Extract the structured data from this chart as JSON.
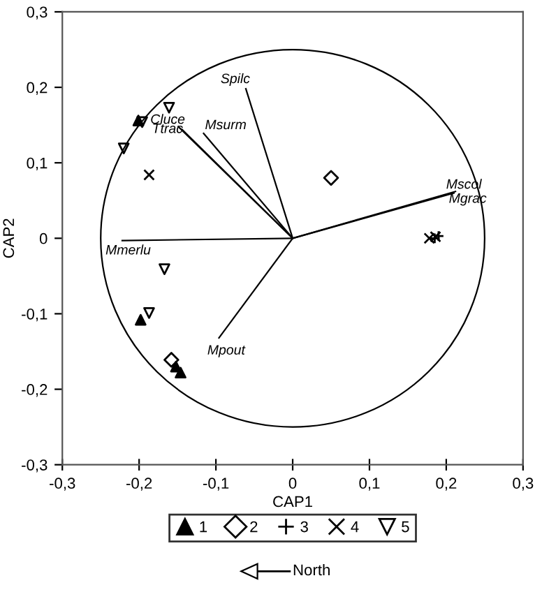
{
  "chart_data": {
    "type": "scatter",
    "xlabel": "CAP1",
    "ylabel": "CAP2",
    "xlim": [
      -0.3,
      0.3
    ],
    "ylim": [
      -0.3,
      0.3
    ],
    "xticks": [
      {
        "value": -0.3,
        "label": "-0,3"
      },
      {
        "value": -0.2,
        "label": "-0,2"
      },
      {
        "value": -0.1,
        "label": "-0,1"
      },
      0,
      {
        "value": 0.1,
        "label": "0,1"
      },
      {
        "value": 0.2,
        "label": "0,2"
      },
      {
        "value": 0.3,
        "label": "0,3"
      }
    ],
    "yticks": [
      {
        "value": -0.3,
        "label": "-0,3"
      },
      {
        "value": -0.2,
        "label": "-0,2"
      },
      {
        "value": -0.1,
        "label": "-0,1"
      },
      0,
      {
        "value": 0.1,
        "label": "0,1"
      },
      {
        "value": 0.2,
        "label": "0,2"
      },
      {
        "value": 0.3,
        "label": "0,3"
      }
    ],
    "grid": false,
    "legend": "bottom",
    "annotations": [
      "North"
    ],
    "series": [
      {
        "name": "1",
        "marker": "triangle",
        "color": "#000000",
        "x": [
          -0.201,
          -0.198,
          -0.152,
          -0.146
        ],
        "values": [
          0.156,
          -0.108,
          -0.17,
          -0.178
        ]
      },
      {
        "name": "2",
        "marker": "diamond",
        "color": "#000000",
        "x": [
          0.05,
          -0.158
        ],
        "values": [
          0.08,
          -0.161
        ]
      },
      {
        "name": "3",
        "marker": "plus",
        "color": "#000000",
        "x": [
          0.185,
          0.19
        ],
        "values": [
          0.0,
          0.003
        ]
      },
      {
        "name": "4",
        "marker": "cross",
        "color": "#000000",
        "x": [
          -0.187,
          0.178,
          0.186
        ],
        "values": [
          0.084,
          0.0,
          0.002
        ]
      },
      {
        "name": "5",
        "marker": "triangle-down",
        "color": "#000000",
        "x": [
          -0.161,
          -0.196,
          -0.22,
          -0.167,
          -0.187
        ],
        "values": [
          0.173,
          0.154,
          0.119,
          -0.041,
          -0.099
        ]
      },
      {
        "name": "Spilc",
        "type": "line",
        "color": "#000000",
        "x": [
          0,
          -0.061
        ],
        "values": [
          0,
          0.198
        ]
      },
      {
        "name": "Msurm",
        "type": "line",
        "color": "#000000",
        "x": [
          0,
          -0.116
        ],
        "values": [
          0,
          0.139
        ]
      },
      {
        "name": "Cluce",
        "type": "line",
        "color": "#000000",
        "x": [
          0,
          -0.149
        ],
        "values": [
          0,
          0.148
        ]
      },
      {
        "name": "Ttrac",
        "type": "line",
        "color": "#000000",
        "x": [
          0,
          -0.144
        ],
        "values": [
          0,
          0.144
        ]
      },
      {
        "name": "Mscol",
        "type": "line",
        "color": "#000000",
        "x": [
          0,
          0.212
        ],
        "values": [
          0,
          0.062
        ]
      },
      {
        "name": "Mgrac",
        "type": "line",
        "color": "#000000",
        "x": [
          0,
          0.21
        ],
        "values": [
          0,
          0.06
        ]
      },
      {
        "name": "Mmerlu",
        "type": "line",
        "color": "#000000",
        "x": [
          0,
          -0.222
        ],
        "values": [
          0,
          -0.003
        ]
      },
      {
        "name": "Mpout",
        "type": "line",
        "color": "#000000",
        "x": [
          0,
          -0.096
        ],
        "values": [
          0,
          -0.132
        ]
      }
    ]
  }
}
